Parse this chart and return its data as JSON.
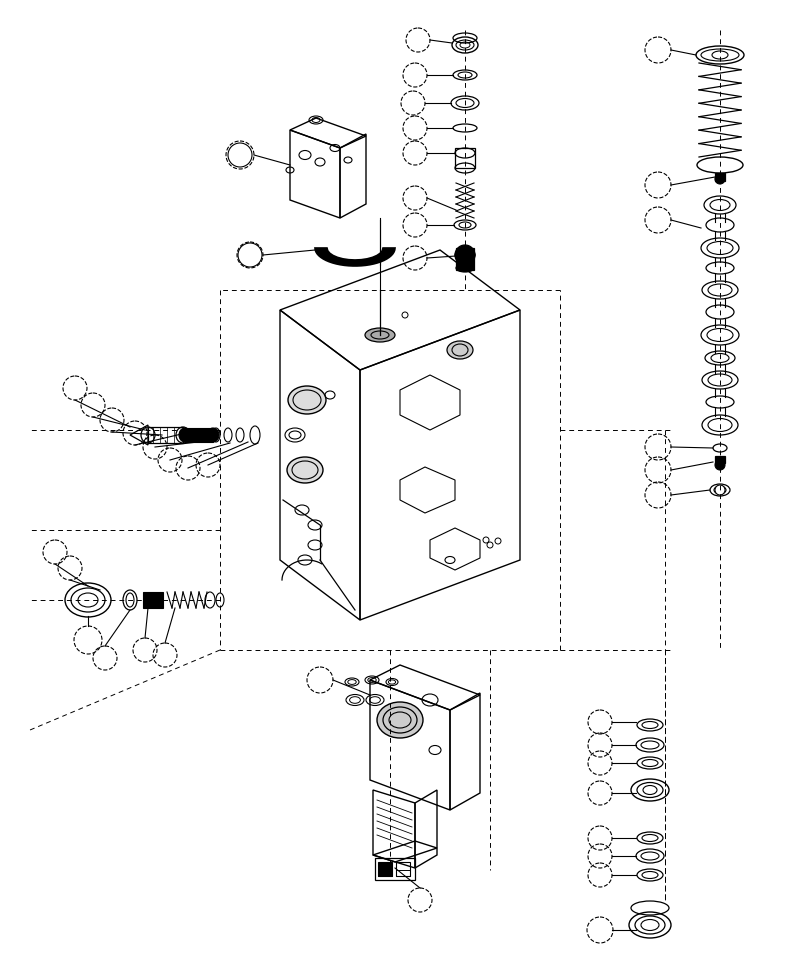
{
  "bg_color": "#ffffff",
  "line_color": "#000000",
  "figsize": [
    7.92,
    9.68
  ],
  "dpi": 100
}
